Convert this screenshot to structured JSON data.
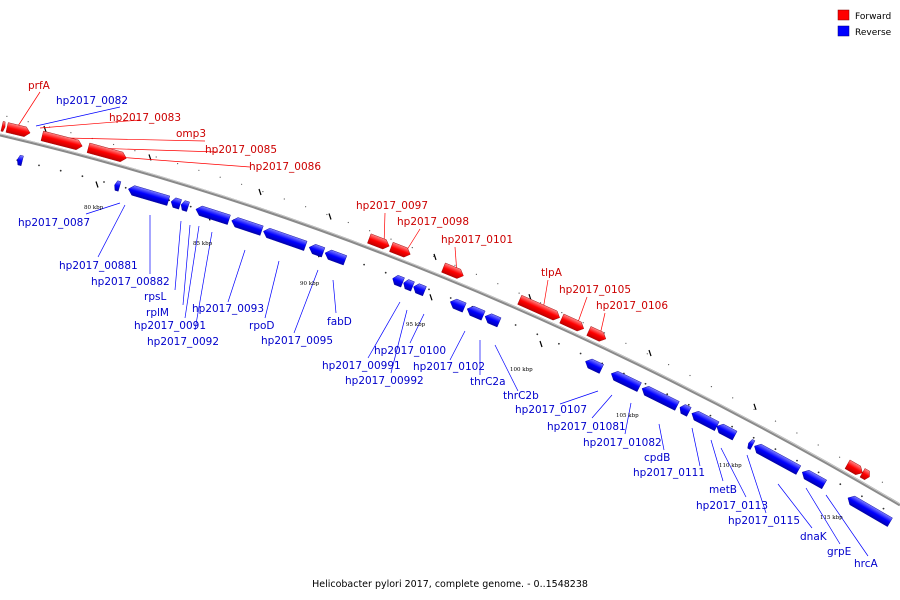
{
  "legend": [
    {
      "label": "Forward",
      "color": "#ff0000"
    },
    {
      "label": "Reverse",
      "color": "#0000ff"
    }
  ],
  "caption": "Helicobacter pylori 2017, complete genome. - 0..1548238",
  "colors": {
    "forward": "#ff0000",
    "reverse": "#0000ff",
    "backbone": "#8a8a8a"
  },
  "ticks": [
    "80 kbp",
    "85 kbp",
    "90 kbp",
    "95 kbp",
    "100 kbp",
    "105 kbp",
    "110 kbp",
    "115 kbp"
  ],
  "forward_labels": [
    "prfA",
    "hp2017_0083",
    "omp3",
    "hp2017_0085",
    "hp2017_0086",
    "hp2017_0097",
    "hp2017_0098",
    "hp2017_0101",
    "tlpA",
    "hp2017_0105",
    "hp2017_0106"
  ],
  "reverse_labels": [
    "hp2017_0082",
    "hp2017_0087",
    "hp2017_00881",
    "hp2017_00882",
    "rpsL",
    "rplM",
    "hp2017_0091",
    "hp2017_0092",
    "hp2017_0093",
    "rpoD",
    "hp2017_0095",
    "fabD",
    "hp2017_00991",
    "hp2017_00992",
    "hp2017_0100",
    "hp2017_0102",
    "thrC2a",
    "thrC2b",
    "hp2017_0107",
    "hp2017_01081",
    "hp2017_01082",
    "cpdB",
    "hp2017_0111",
    "metB",
    "hp2017_0113",
    "hp2017_0115",
    "dnaK",
    "grpE",
    "hrcA"
  ]
}
